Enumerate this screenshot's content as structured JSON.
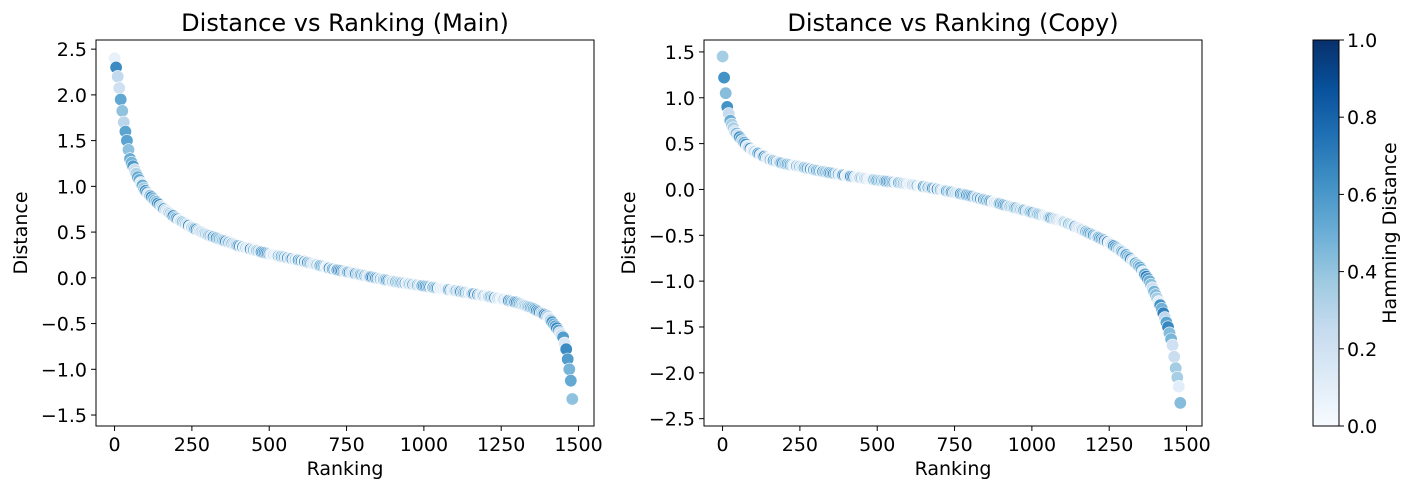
{
  "chart_data": [
    {
      "type": "scatter",
      "title": "Distance vs Ranking (Main)",
      "xlabel": "Ranking",
      "ylabel": "Distance",
      "xlim": [
        -60,
        1550
      ],
      "ylim": [
        -1.62,
        2.6
      ],
      "xticks": [
        0,
        250,
        500,
        750,
        1000,
        1250,
        1500
      ],
      "xtick_labels": [
        "0",
        "250",
        "500",
        "750",
        "1000",
        "1250",
        "1500"
      ],
      "yticks": [
        -1.5,
        -1.0,
        -0.5,
        0.0,
        0.5,
        1.0,
        1.5,
        2.0,
        2.5
      ],
      "ytick_labels": [
        "−1.5",
        "−1.0",
        "−0.5",
        "0.0",
        "0.5",
        "1.0",
        "1.5",
        "2.0",
        "2.5"
      ],
      "grid": false,
      "colormap": "Blues",
      "n_points": 1482,
      "curve_knots": [
        [
          0,
          2.4
        ],
        [
          10,
          2.2
        ],
        [
          20,
          1.95
        ],
        [
          30,
          1.7
        ],
        [
          40,
          1.5
        ],
        [
          50,
          1.3
        ],
        [
          75,
          1.1
        ],
        [
          100,
          0.95
        ],
        [
          150,
          0.78
        ],
        [
          200,
          0.65
        ],
        [
          250,
          0.55
        ],
        [
          300,
          0.47
        ],
        [
          400,
          0.35
        ],
        [
          500,
          0.26
        ],
        [
          600,
          0.19
        ],
        [
          700,
          0.1
        ],
        [
          800,
          0.03
        ],
        [
          900,
          -0.04
        ],
        [
          1000,
          -0.09
        ],
        [
          1100,
          -0.14
        ],
        [
          1200,
          -0.2
        ],
        [
          1250,
          -0.23
        ],
        [
          1300,
          -0.27
        ],
        [
          1350,
          -0.33
        ],
        [
          1400,
          -0.42
        ],
        [
          1430,
          -0.55
        ],
        [
          1450,
          -0.65
        ],
        [
          1460,
          -0.78
        ],
        [
          1470,
          -1.0
        ],
        [
          1478,
          -1.2
        ],
        [
          1482,
          -1.45
        ]
      ]
    },
    {
      "type": "scatter",
      "title": "Distance vs Ranking (Copy)",
      "xlabel": "Ranking",
      "ylabel": "Distance",
      "xlim": [
        -60,
        1550
      ],
      "ylim": [
        -2.58,
        1.63
      ],
      "xticks": [
        0,
        250,
        500,
        750,
        1000,
        1250,
        1500
      ],
      "xtick_labels": [
        "0",
        "250",
        "500",
        "750",
        "1000",
        "1250",
        "1500"
      ],
      "yticks": [
        -2.5,
        -2.0,
        -1.5,
        -1.0,
        -0.5,
        0.0,
        0.5,
        1.0,
        1.5
      ],
      "ytick_labels": [
        "−2.5",
        "−2.0",
        "−1.5",
        "−1.0",
        "−0.5",
        "0.0",
        "0.5",
        "1.0",
        "1.5"
      ],
      "grid": false,
      "colormap": "Blues",
      "n_points": 1482,
      "curve_knots": [
        [
          0,
          1.45
        ],
        [
          5,
          1.22
        ],
        [
          10,
          1.05
        ],
        [
          15,
          0.9
        ],
        [
          25,
          0.75
        ],
        [
          40,
          0.63
        ],
        [
          60,
          0.55
        ],
        [
          80,
          0.47
        ],
        [
          100,
          0.42
        ],
        [
          150,
          0.33
        ],
        [
          200,
          0.28
        ],
        [
          250,
          0.25
        ],
        [
          300,
          0.21
        ],
        [
          400,
          0.15
        ],
        [
          500,
          0.1
        ],
        [
          600,
          0.06
        ],
        [
          700,
          0.0
        ],
        [
          800,
          -0.07
        ],
        [
          900,
          -0.16
        ],
        [
          1000,
          -0.25
        ],
        [
          1100,
          -0.35
        ],
        [
          1150,
          -0.42
        ],
        [
          1200,
          -0.5
        ],
        [
          1250,
          -0.58
        ],
        [
          1300,
          -0.7
        ],
        [
          1350,
          -0.85
        ],
        [
          1380,
          -1.0
        ],
        [
          1400,
          -1.15
        ],
        [
          1420,
          -1.3
        ],
        [
          1440,
          -1.5
        ],
        [
          1455,
          -1.7
        ],
        [
          1465,
          -1.95
        ],
        [
          1475,
          -2.15
        ],
        [
          1482,
          -2.4
        ]
      ]
    }
  ],
  "colorbar": {
    "label": "Hamming Distance",
    "range": [
      0.0,
      1.0
    ],
    "ticks": [
      0.0,
      0.2,
      0.4,
      0.6,
      0.8,
      1.0
    ],
    "tick_labels": [
      "0.0",
      "0.2",
      "0.4",
      "0.6",
      "0.8",
      "1.0"
    ],
    "colormap": "Blues",
    "color_low": "#f7fbff",
    "color_high": "#08306b"
  }
}
